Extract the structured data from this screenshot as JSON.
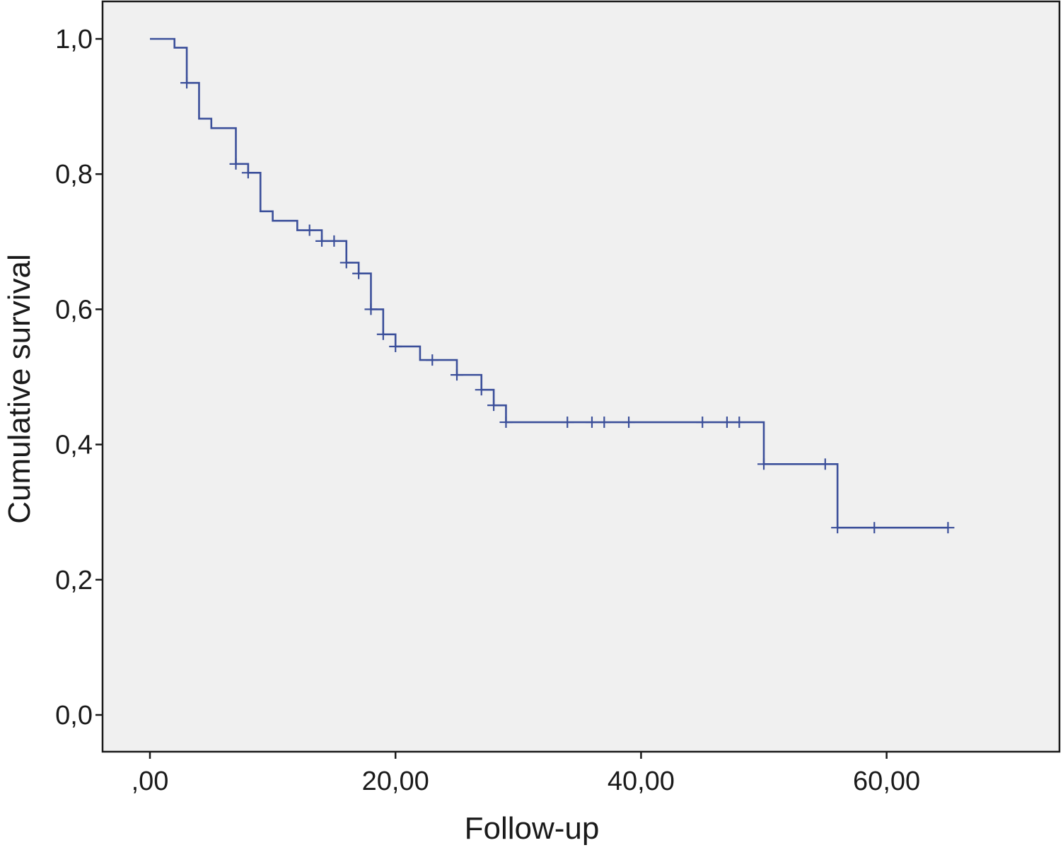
{
  "chart_data": {
    "type": "line",
    "subtype": "kaplan-meier-step",
    "title": "",
    "xlabel": "Follow-up",
    "ylabel": "Cumulative survival",
    "xlim": [
      -10,
      74
    ],
    "ylim": [
      -0.11,
      1.11
    ],
    "x_ticks": [
      0,
      20,
      40,
      60
    ],
    "x_tick_labels": [
      ",00",
      "20,00",
      "40,00",
      "60,00"
    ],
    "y_ticks": [
      0.0,
      0.2,
      0.4,
      0.6,
      0.8,
      1.0
    ],
    "y_tick_labels": [
      "0,0",
      "0,2",
      "0,4",
      "0,6",
      "0,8",
      "1,0"
    ],
    "grid": false,
    "legend": "none",
    "colors": {
      "plot_background": "#f0f0f0",
      "series": "#3b4f9a",
      "frame": "#1a1a1a"
    },
    "series": [
      {
        "step_points": [
          [
            0.0,
            1.0
          ],
          [
            2.0,
            0.987
          ],
          [
            3.0,
            0.935
          ],
          [
            4.0,
            0.882
          ],
          [
            5.0,
            0.868
          ],
          [
            7.0,
            0.815
          ],
          [
            8.0,
            0.802
          ],
          [
            9.0,
            0.745
          ],
          [
            10.0,
            0.731
          ],
          [
            12.0,
            0.717
          ],
          [
            14.0,
            0.701
          ],
          [
            16.0,
            0.669
          ],
          [
            17.0,
            0.653
          ],
          [
            18.0,
            0.6
          ],
          [
            19.0,
            0.563
          ],
          [
            20.0,
            0.545
          ],
          [
            22.0,
            0.525
          ],
          [
            25.0,
            0.503
          ],
          [
            27.0,
            0.481
          ],
          [
            28.0,
            0.458
          ],
          [
            29.0,
            0.433
          ],
          [
            50.0,
            0.371
          ],
          [
            56.0,
            0.277
          ],
          [
            65.0,
            0.277
          ]
        ],
        "censored": [
          [
            3.0,
            0.935
          ],
          [
            7.0,
            0.815
          ],
          [
            8.0,
            0.802
          ],
          [
            13.0,
            0.717
          ],
          [
            14.0,
            0.701
          ],
          [
            15.0,
            0.701
          ],
          [
            16.0,
            0.669
          ],
          [
            17.0,
            0.653
          ],
          [
            18.0,
            0.6
          ],
          [
            19.0,
            0.563
          ],
          [
            20.0,
            0.545
          ],
          [
            23.0,
            0.525
          ],
          [
            25.0,
            0.503
          ],
          [
            27.0,
            0.481
          ],
          [
            28.0,
            0.458
          ],
          [
            29.0,
            0.433
          ],
          [
            34.0,
            0.433
          ],
          [
            36.0,
            0.433
          ],
          [
            37.0,
            0.433
          ],
          [
            39.0,
            0.433
          ],
          [
            45.0,
            0.433
          ],
          [
            47.0,
            0.433
          ],
          [
            48.0,
            0.433
          ],
          [
            50.0,
            0.371
          ],
          [
            55.0,
            0.371
          ],
          [
            56.0,
            0.277
          ],
          [
            59.0,
            0.277
          ],
          [
            65.0,
            0.277
          ]
        ]
      }
    ]
  }
}
